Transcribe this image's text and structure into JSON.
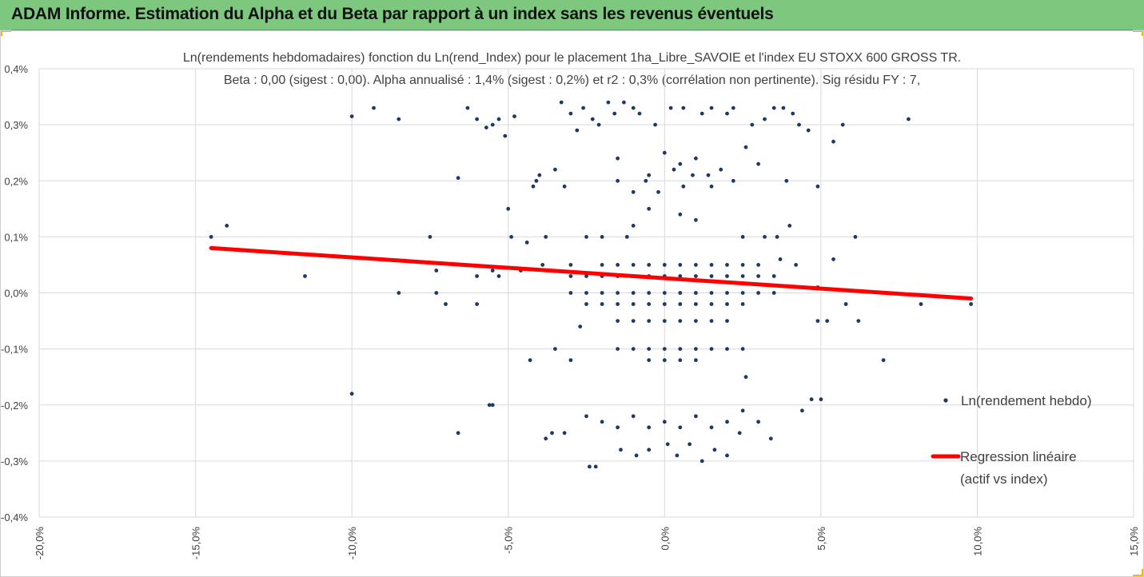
{
  "header": {
    "title": "ADAM Informe. Estimation du Alpha et du Beta par rapport à un index sans les revenus éventuels"
  },
  "colors": {
    "header_bg": "#7dc87e",
    "accent": "#f2b705",
    "points": "#1f3864",
    "regression": "#ff0000"
  },
  "chart_data": {
    "type": "scatter",
    "title": "Ln(rendements hebdomadaires) fonction du Ln(rend_Index) pour le placement 1ha_Libre_SAVOIE et l'index EU STOXX 600 GROSS TR.",
    "subtitle": "Beta : 0,00 (sigest : 0,00). Alpha annualisé : 1,4% (sigest : 0,2%) et r2 : 0,3% (corrélation non pertinente). Sig résidu FY : 7,",
    "xlim": [
      -20,
      15
    ],
    "ylim": [
      -0.4,
      0.4
    ],
    "x_ticks": [
      "-20,0%",
      "-15,0%",
      "-10,0%",
      "-5,0%",
      "0,0%",
      "5,0%",
      "10,0%",
      "15,0%"
    ],
    "y_ticks": [
      "0,4%",
      "0,3%",
      "0,2%",
      "0,1%",
      "0,0%",
      "-0,1%",
      "-0,2%",
      "-0,3%",
      "-0,4%"
    ],
    "grid": true,
    "legend_position": "right",
    "series": [
      {
        "name": "Ln(rendement hebdo)",
        "kind": "scatter",
        "points": [
          [
            -14.5,
            0.1
          ],
          [
            -14,
            0.12
          ],
          [
            -11.5,
            0.03
          ],
          [
            -10,
            0.315
          ],
          [
            -10,
            -0.18
          ],
          [
            -9.3,
            0.33
          ],
          [
            -8.5,
            0.31
          ],
          [
            -8.5,
            0.0
          ],
          [
            -7.5,
            0.1
          ],
          [
            -7.3,
            0.04
          ],
          [
            -7.3,
            0.0
          ],
          [
            -7,
            -0.02
          ],
          [
            -6.6,
            0.205
          ],
          [
            -6.6,
            -0.25
          ],
          [
            -6.5,
            0.05
          ],
          [
            -6.3,
            0.33
          ],
          [
            -6,
            0.03
          ],
          [
            -6,
            -0.02
          ],
          [
            -6,
            0.31
          ],
          [
            -5.7,
            0.295
          ],
          [
            -5.5,
            0.3
          ],
          [
            -5.5,
            0.04
          ],
          [
            -5.5,
            -0.2
          ],
          [
            -5.6,
            -0.2
          ],
          [
            -5.3,
            0.31
          ],
          [
            -5.3,
            0.03
          ],
          [
            -5.1,
            0.28
          ],
          [
            -5,
            0.15
          ],
          [
            -4.9,
            0.1
          ],
          [
            -4.8,
            0.315
          ],
          [
            -4.6,
            0.04
          ],
          [
            -4.4,
            0.09
          ],
          [
            -4.3,
            -0.12
          ],
          [
            -4.2,
            0.19
          ],
          [
            -4.1,
            0.2
          ],
          [
            -4,
            0.21
          ],
          [
            -3.9,
            0.05
          ],
          [
            -3.8,
            0.1
          ],
          [
            -3.8,
            -0.26
          ],
          [
            -3.6,
            -0.25
          ],
          [
            -3.5,
            0.22
          ],
          [
            -3.5,
            -0.1
          ],
          [
            -3.3,
            0.34
          ],
          [
            -3.2,
            0.19
          ],
          [
            -3.2,
            -0.25
          ],
          [
            -3.0,
            0.32
          ],
          [
            -3.0,
            0.05
          ],
          [
            -3.0,
            -0.12
          ],
          [
            -2.8,
            0.29
          ],
          [
            -2.7,
            -0.06
          ],
          [
            -2.6,
            0.33
          ],
          [
            -2.5,
            0.1
          ],
          [
            -2.4,
            -0.31
          ],
          [
            -2.3,
            0.31
          ],
          [
            -2.2,
            -0.31
          ],
          [
            -2.1,
            0.3
          ],
          [
            -2.0,
            0.1
          ],
          [
            -1.8,
            0.34
          ],
          [
            -1.6,
            0.32
          ],
          [
            -1.5,
            0.24
          ],
          [
            -1.4,
            -0.28
          ],
          [
            -1.3,
            0.34
          ],
          [
            -1.2,
            0.1
          ],
          [
            -1.0,
            0.33
          ],
          [
            -0.9,
            -0.29
          ],
          [
            -0.8,
            0.32
          ],
          [
            -0.6,
            0.2
          ],
          [
            -0.5,
            -0.28
          ],
          [
            -0.3,
            0.3
          ],
          [
            0.0,
            0.25
          ],
          [
            0.1,
            -0.27
          ],
          [
            0.2,
            0.33
          ],
          [
            0.4,
            -0.29
          ],
          [
            0.5,
            0.23
          ],
          [
            0.6,
            0.33
          ],
          [
            0.8,
            -0.27
          ],
          [
            1.0,
            0.24
          ],
          [
            1.2,
            0.32
          ],
          [
            1.2,
            -0.3
          ],
          [
            1.4,
            0.21
          ],
          [
            1.5,
            0.33
          ],
          [
            1.6,
            -0.28
          ],
          [
            1.8,
            0.22
          ],
          [
            2.0,
            0.32
          ],
          [
            2.0,
            -0.29
          ],
          [
            2.2,
            0.2
          ],
          [
            2.2,
            0.33
          ],
          [
            2.4,
            -0.25
          ],
          [
            2.5,
            0.1
          ],
          [
            2.6,
            0.26
          ],
          [
            2.6,
            -0.15
          ],
          [
            2.8,
            0.3
          ],
          [
            3.0,
            0.23
          ],
          [
            3.0,
            -0.23
          ],
          [
            3.2,
            0.31
          ],
          [
            3.2,
            0.1
          ],
          [
            3.4,
            -0.26
          ],
          [
            3.5,
            0.33
          ],
          [
            3.6,
            0.1
          ],
          [
            3.7,
            0.06
          ],
          [
            3.8,
            0.33
          ],
          [
            3.9,
            0.2
          ],
          [
            4.0,
            0.12
          ],
          [
            4.1,
            0.32
          ],
          [
            4.2,
            0.05
          ],
          [
            4.3,
            0.3
          ],
          [
            4.4,
            -0.21
          ],
          [
            4.6,
            0.29
          ],
          [
            4.7,
            -0.19
          ],
          [
            4.9,
            0.19
          ],
          [
            4.9,
            -0.05
          ],
          [
            4.9,
            0.01
          ],
          [
            5.0,
            -0.19
          ],
          [
            5.2,
            -0.05
          ],
          [
            5.4,
            0.27
          ],
          [
            5.4,
            0.06
          ],
          [
            5.7,
            0.3
          ],
          [
            5.8,
            -0.02
          ],
          [
            6.1,
            0.1
          ],
          [
            6.2,
            -0.05
          ],
          [
            7.0,
            -0.12
          ],
          [
            7.8,
            0.31
          ],
          [
            8.2,
            -0.02
          ],
          [
            9.8,
            -0.02
          ],
          [
            -0.5,
            0.21
          ],
          [
            -0.2,
            0.18
          ],
          [
            0.3,
            0.22
          ],
          [
            0.6,
            0.19
          ],
          [
            0.9,
            0.21
          ],
          [
            -1.5,
            0.2
          ],
          [
            -1.0,
            0.18
          ],
          [
            1.5,
            0.19
          ],
          [
            -0.5,
            0.15
          ],
          [
            0.5,
            0.14
          ],
          [
            -1.0,
            0.12
          ],
          [
            1.0,
            0.13
          ],
          [
            -2,
            0.05
          ],
          [
            -1.5,
            0.05
          ],
          [
            -1,
            0.05
          ],
          [
            -0.5,
            0.05
          ],
          [
            0,
            0.05
          ],
          [
            0.5,
            0.05
          ],
          [
            1,
            0.05
          ],
          [
            1.5,
            0.05
          ],
          [
            2,
            0.05
          ],
          [
            2.5,
            0.05
          ],
          [
            3,
            0.05
          ],
          [
            -3,
            0.03
          ],
          [
            -2.5,
            0.03
          ],
          [
            -2,
            0.03
          ],
          [
            -1.5,
            0.03
          ],
          [
            -1,
            0.03
          ],
          [
            -0.5,
            0.03
          ],
          [
            0,
            0.03
          ],
          [
            0.5,
            0.03
          ],
          [
            1,
            0.03
          ],
          [
            1.5,
            0.03
          ],
          [
            2,
            0.03
          ],
          [
            2.5,
            0.03
          ],
          [
            3,
            0.03
          ],
          [
            3.5,
            0.03
          ],
          [
            -3,
            0.0
          ],
          [
            -2.5,
            0.0
          ],
          [
            -2,
            0.0
          ],
          [
            -1.5,
            0.0
          ],
          [
            -1,
            0.0
          ],
          [
            -0.5,
            0.0
          ],
          [
            0,
            0.0
          ],
          [
            0.5,
            0.0
          ],
          [
            1,
            0.0
          ],
          [
            1.5,
            0.0
          ],
          [
            2,
            0.0
          ],
          [
            2.5,
            0.0
          ],
          [
            3,
            0.0
          ],
          [
            3.5,
            0.0
          ],
          [
            -2.5,
            -0.02
          ],
          [
            -2,
            -0.02
          ],
          [
            -1.5,
            -0.02
          ],
          [
            -1,
            -0.02
          ],
          [
            -0.5,
            -0.02
          ],
          [
            0,
            -0.02
          ],
          [
            0.5,
            -0.02
          ],
          [
            1,
            -0.02
          ],
          [
            1.5,
            -0.02
          ],
          [
            2,
            -0.02
          ],
          [
            2.5,
            -0.02
          ],
          [
            -1.5,
            -0.05
          ],
          [
            -1,
            -0.05
          ],
          [
            -0.5,
            -0.05
          ],
          [
            0,
            -0.05
          ],
          [
            0.5,
            -0.05
          ],
          [
            1,
            -0.05
          ],
          [
            1.5,
            -0.05
          ],
          [
            2,
            -0.05
          ],
          [
            -1.5,
            -0.1
          ],
          [
            -1,
            -0.1
          ],
          [
            -0.5,
            -0.1
          ],
          [
            0,
            -0.1
          ],
          [
            0.5,
            -0.1
          ],
          [
            1,
            -0.1
          ],
          [
            1.5,
            -0.1
          ],
          [
            2,
            -0.1
          ],
          [
            2.5,
            -0.1
          ],
          [
            -0.5,
            -0.12
          ],
          [
            0,
            -0.12
          ],
          [
            0.5,
            -0.12
          ],
          [
            1,
            -0.12
          ],
          [
            -2,
            -0.23
          ],
          [
            -1.5,
            -0.24
          ],
          [
            -1,
            -0.22
          ],
          [
            -0.5,
            -0.24
          ],
          [
            0,
            -0.23
          ],
          [
            0.5,
            -0.24
          ],
          [
            1,
            -0.22
          ],
          [
            1.5,
            -0.24
          ],
          [
            2,
            -0.23
          ],
          [
            -2.5,
            -0.22
          ],
          [
            2.5,
            -0.21
          ]
        ]
      },
      {
        "name": "Regression linéaire (actif vs index)",
        "kind": "line",
        "points": [
          [
            -14.5,
            0.08
          ],
          [
            9.8,
            -0.01
          ]
        ]
      }
    ]
  },
  "legend": {
    "scatter_label": "Ln(rendement hebdo)",
    "line_label_1": "Regression linéaire",
    "line_label_2": "(actif vs index)"
  }
}
